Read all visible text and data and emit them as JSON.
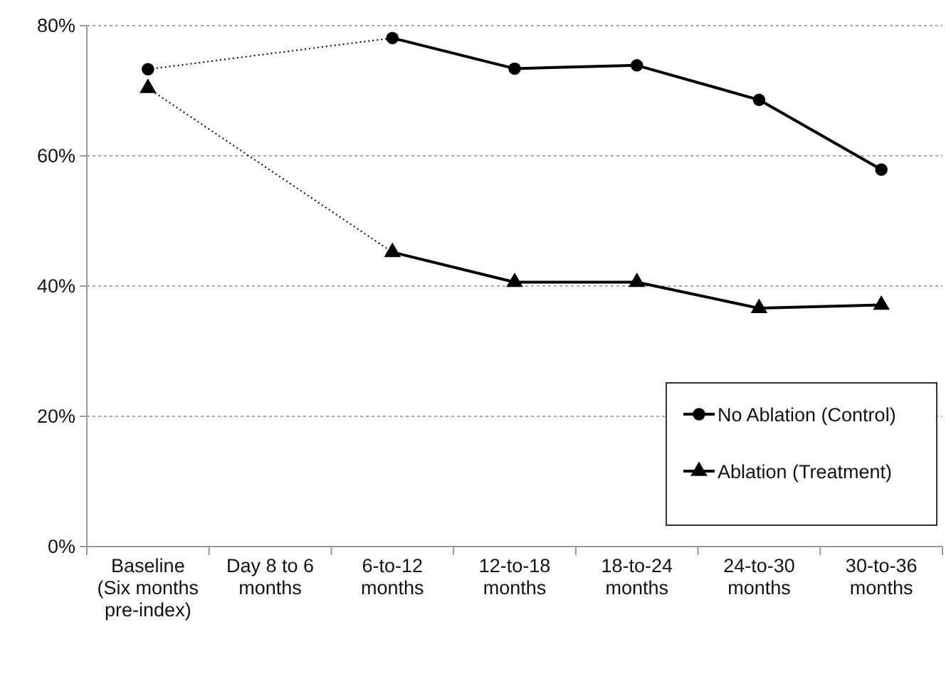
{
  "chart_data": {
    "type": "line",
    "categories": [
      "Baseline (Six months pre-index)",
      "Day 8 to 6 months",
      "6-to-12 months",
      "12-to-18 months",
      "18-to-24 months",
      "24-to-30 months",
      "30-to-36 months"
    ],
    "series": [
      {
        "name": "No Ablation (Control)",
        "color": "#000000",
        "marker": "circle",
        "line_style": "solid",
        "values": [
          73.3,
          null,
          78.1,
          73.4,
          73.9,
          68.6,
          57.9
        ]
      },
      {
        "name": "Ablation (Treatment)",
        "color": "#000000",
        "marker": "triangle",
        "line_style": "solid",
        "values": [
          70.4,
          null,
          45.2,
          40.6,
          40.6,
          36.6,
          37.1
        ]
      }
    ],
    "ylim": [
      0,
      80
    ],
    "yticks": [
      {
        "value": 0,
        "label": "0%"
      },
      {
        "value": 20,
        "label": "20%"
      },
      {
        "value": 40,
        "label": "40%"
      },
      {
        "value": 60,
        "label": "60%"
      },
      {
        "value": 80,
        "label": "80%"
      }
    ],
    "grid": "y",
    "legend": "bottom right"
  }
}
